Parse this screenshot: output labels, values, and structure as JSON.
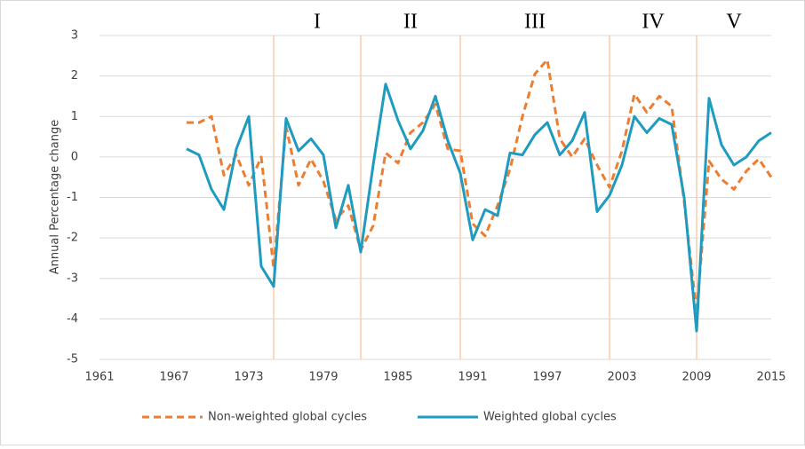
{
  "chart_data": {
    "type": "line",
    "y_label": "Annual Percentage change",
    "x": [
      1968,
      1969,
      1970,
      1971,
      1972,
      1973,
      1974,
      1975,
      1976,
      1977,
      1978,
      1979,
      1980,
      1981,
      1982,
      1983,
      1984,
      1985,
      1986,
      1987,
      1988,
      1989,
      1990,
      1991,
      1992,
      1993,
      1994,
      1995,
      1996,
      1997,
      1998,
      1999,
      2000,
      2001,
      2002,
      2003,
      2004,
      2005,
      2006,
      2007,
      2008,
      2009,
      2010,
      2011,
      2012,
      2013,
      2014,
      2015
    ],
    "series": [
      {
        "name": "Non-weighted global cycles",
        "color": "#ed7d31",
        "dashed": true,
        "values": [
          0.85,
          0.85,
          1.0,
          -0.45,
          0.05,
          -0.7,
          0.0,
          -2.75,
          0.75,
          -0.7,
          -0.05,
          -0.6,
          -1.55,
          -1.2,
          -2.3,
          -1.7,
          0.1,
          -0.15,
          0.6,
          0.85,
          1.3,
          0.2,
          0.15,
          -1.65,
          -1.95,
          -1.2,
          -0.3,
          1.0,
          2.05,
          2.4,
          0.45,
          0.0,
          0.45,
          -0.2,
          -0.75,
          0.15,
          1.55,
          1.1,
          1.5,
          1.25,
          -1.1,
          -3.85,
          -0.1,
          -0.55,
          -0.8,
          -0.35,
          -0.05,
          -0.5
        ]
      },
      {
        "name": "Weighted global cycles",
        "color": "#1f9bc0",
        "dashed": false,
        "values": [
          0.2,
          0.05,
          -0.8,
          -1.3,
          0.2,
          1.0,
          -2.7,
          -3.2,
          0.95,
          0.15,
          0.45,
          0.05,
          -1.75,
          -0.7,
          -2.35,
          -0.2,
          1.8,
          0.9,
          0.2,
          0.65,
          1.5,
          0.4,
          -0.4,
          -2.05,
          -1.3,
          -1.45,
          0.1,
          0.05,
          0.55,
          0.85,
          0.05,
          0.4,
          1.1,
          -1.35,
          -0.95,
          -0.2,
          1.0,
          0.6,
          0.95,
          0.8,
          -1.0,
          -4.3,
          1.45,
          0.3,
          -0.2,
          0.0,
          0.4,
          0.6
        ]
      }
    ],
    "cycle_boundaries": [
      1975,
      1982,
      1990,
      2002,
      2009
    ],
    "cycle_labels": [
      "I",
      "II",
      "III",
      "IV",
      "V"
    ],
    "xlim": [
      1961,
      2015
    ],
    "xticks": [
      1961,
      1967,
      1973,
      1979,
      1985,
      1991,
      1997,
      2003,
      2009,
      2015
    ],
    "ylim": [
      -5,
      3
    ],
    "yticks": [
      -5,
      -4,
      -3,
      -2,
      -1,
      0,
      1,
      2,
      3
    ],
    "grid": true,
    "legend": "bottom"
  }
}
